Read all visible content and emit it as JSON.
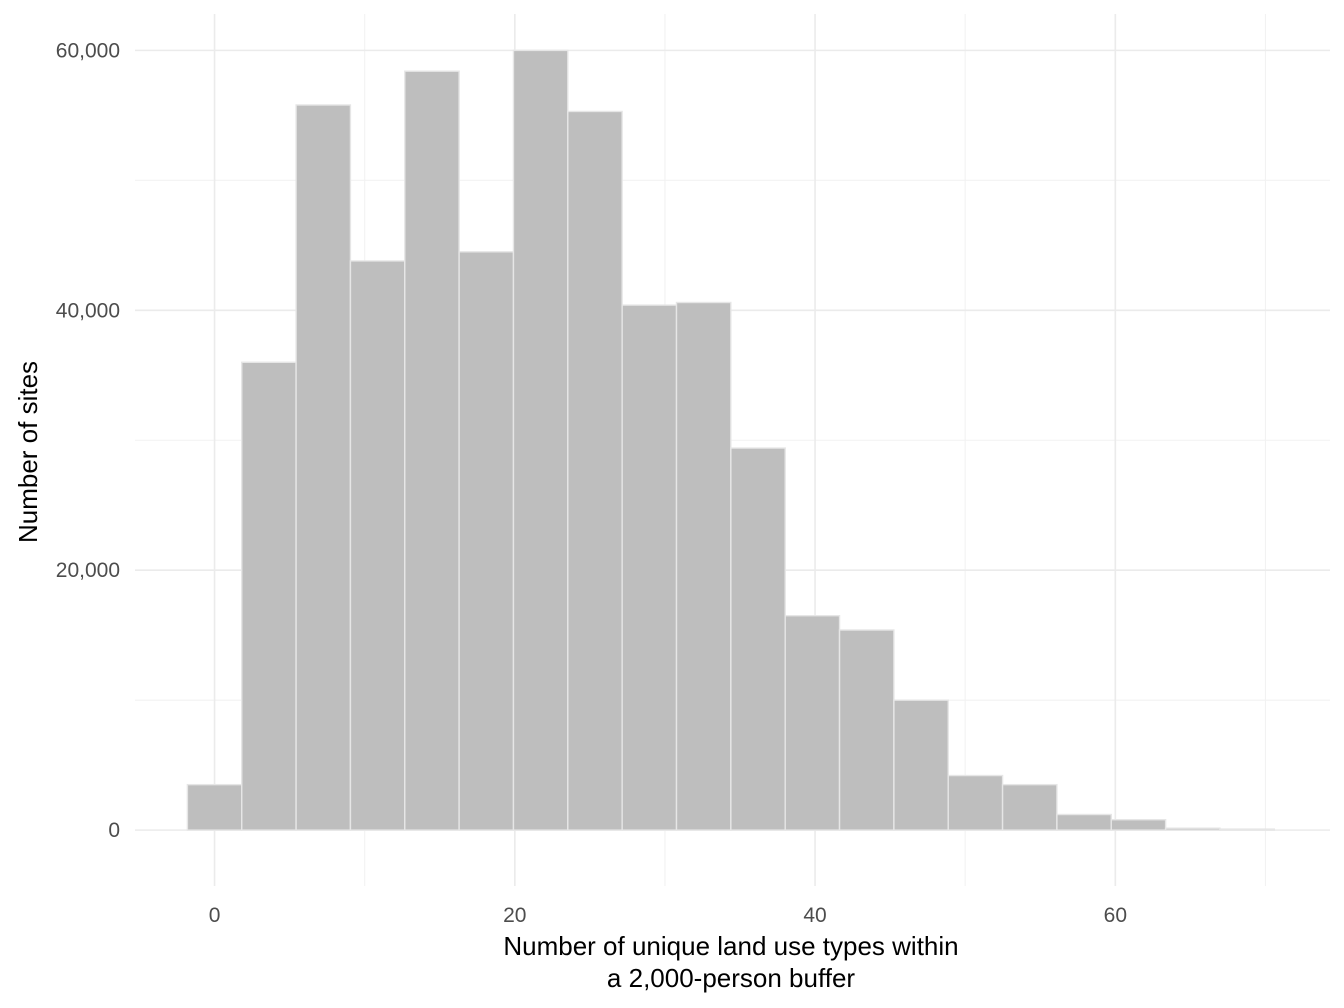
{
  "chart_data": {
    "type": "bar",
    "subtype": "histogram",
    "xlabel": [
      "Number of unique land use types within",
      "a 2,000-person buffer"
    ],
    "ylabel": "Number of sites",
    "xlim": [
      -5.3,
      74.3
    ],
    "ylim": [
      -4300,
      62800
    ],
    "x_ticks": [
      0,
      20,
      40,
      60
    ],
    "x_tick_labels": [
      "0",
      "20",
      "40",
      "60"
    ],
    "y_ticks": [
      0,
      20000,
      40000,
      60000
    ],
    "y_tick_labels": [
      "0",
      "20,000",
      "40,000",
      "60,000"
    ],
    "grid": true,
    "bin_width": 3.62,
    "bins": [
      {
        "x_start": -1.81,
        "x_end": 1.81,
        "count": 3500
      },
      {
        "x_start": 1.81,
        "x_end": 5.43,
        "count": 36000
      },
      {
        "x_start": 5.43,
        "x_end": 9.05,
        "count": 55800
      },
      {
        "x_start": 9.05,
        "x_end": 12.67,
        "count": 43800
      },
      {
        "x_start": 12.67,
        "x_end": 16.29,
        "count": 58400
      },
      {
        "x_start": 16.29,
        "x_end": 19.91,
        "count": 44500
      },
      {
        "x_start": 19.91,
        "x_end": 23.53,
        "count": 60000
      },
      {
        "x_start": 23.53,
        "x_end": 27.15,
        "count": 55300
      },
      {
        "x_start": 27.15,
        "x_end": 30.77,
        "count": 40400
      },
      {
        "x_start": 30.77,
        "x_end": 34.39,
        "count": 40600
      },
      {
        "x_start": 34.39,
        "x_end": 38.01,
        "count": 29400
      },
      {
        "x_start": 38.01,
        "x_end": 41.63,
        "count": 16500
      },
      {
        "x_start": 41.63,
        "x_end": 45.25,
        "count": 15400
      },
      {
        "x_start": 45.25,
        "x_end": 48.87,
        "count": 10000
      },
      {
        "x_start": 48.87,
        "x_end": 52.49,
        "count": 4200
      },
      {
        "x_start": 52.49,
        "x_end": 56.11,
        "count": 3500
      },
      {
        "x_start": 56.11,
        "x_end": 59.73,
        "count": 1200
      },
      {
        "x_start": 59.73,
        "x_end": 63.35,
        "count": 800
      },
      {
        "x_start": 63.35,
        "x_end": 66.97,
        "count": 150
      },
      {
        "x_start": 66.97,
        "x_end": 70.59,
        "count": 80
      }
    ],
    "colors": {
      "bar_fill": "#bebebe",
      "bar_stroke": "#e6e6e6",
      "grid_major": "#ebebeb",
      "grid_minor": "#f2f2f2",
      "tick_text": "#4d4d4d",
      "title_text": "#000000"
    }
  }
}
